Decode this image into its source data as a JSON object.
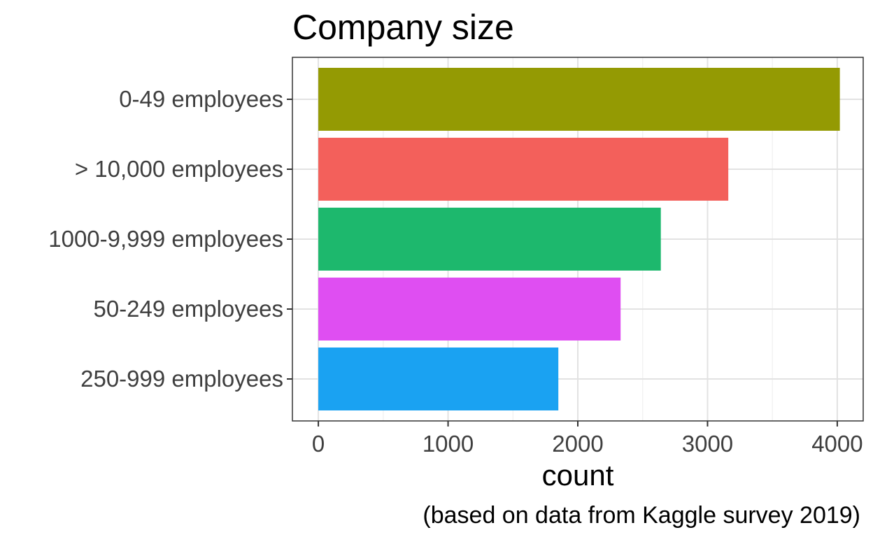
{
  "chart_data": {
    "type": "bar",
    "orientation": "horizontal",
    "title": "Company size",
    "categories": [
      "0-49 employees",
      "> 10,000 employees",
      "1000-9,999 employees",
      "50-249 employees",
      "250-999 employees"
    ],
    "values": [
      4020,
      3160,
      2640,
      2330,
      1850
    ],
    "colors": [
      "#949a03",
      "#f3605b",
      "#1db86d",
      "#df4ef2",
      "#1aa2f2"
    ],
    "xlabel": "count",
    "ylabel": "",
    "xlim": [
      -200,
      4200
    ],
    "xticks": [
      0,
      1000,
      2000,
      3000,
      4000
    ],
    "xtick_labels": [
      "0",
      "1000",
      "2000",
      "3000",
      "4000"
    ],
    "caption": "(based on data from Kaggle survey 2019)",
    "grid": true,
    "legend": "none"
  }
}
